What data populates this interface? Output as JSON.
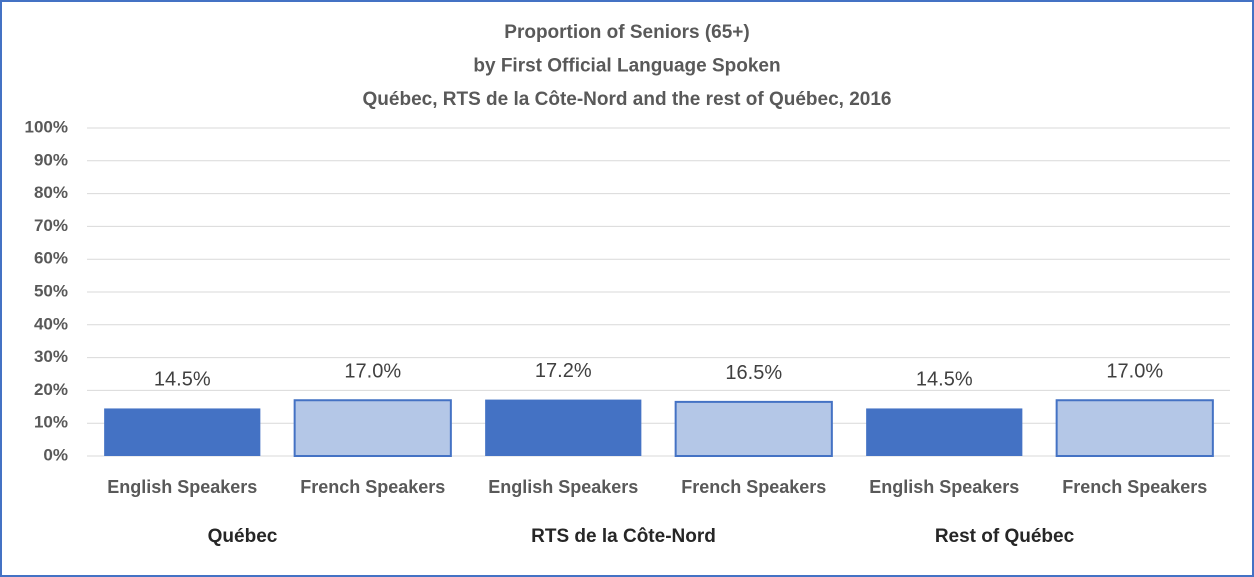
{
  "chart_data": {
    "type": "bar",
    "title": [
      "Proportion of Seniors (65+)",
      "by First Official Language Spoken",
      "Québec, RTS de la Côte-Nord and the rest of Québec, 2016"
    ],
    "categories": [
      "English Speakers",
      "French Speakers",
      "English Speakers",
      "French Speakers",
      "English Speakers",
      "French Speakers"
    ],
    "groups": [
      "Québec",
      "RTS de la Côte-Nord",
      "Rest of Québec"
    ],
    "values": [
      14.5,
      17.0,
      17.2,
      16.5,
      14.5,
      17.0
    ],
    "value_labels": [
      "14.5%",
      "17.0%",
      "17.2%",
      "16.5%",
      "14.5%",
      "17.0%"
    ],
    "colors": [
      "#4472c4",
      "#b4c7e7",
      "#4472c4",
      "#b4c7e7",
      "#4472c4",
      "#b4c7e7"
    ],
    "edgecolor": "#4472c4",
    "ylim": [
      0,
      100
    ],
    "yticks": [
      {
        "value": 0,
        "label": "0%"
      },
      {
        "value": 10,
        "label": "10%"
      },
      {
        "value": 20,
        "label": "20%"
      },
      {
        "value": 30,
        "label": "30%"
      },
      {
        "value": 40,
        "label": "40%"
      },
      {
        "value": 50,
        "label": "50%"
      },
      {
        "value": 60,
        "label": "60%"
      },
      {
        "value": 70,
        "label": "70%"
      },
      {
        "value": 80,
        "label": "80%"
      },
      {
        "value": 90,
        "label": "90%"
      },
      {
        "value": 100,
        "label": "100%"
      }
    ],
    "grid": true
  }
}
